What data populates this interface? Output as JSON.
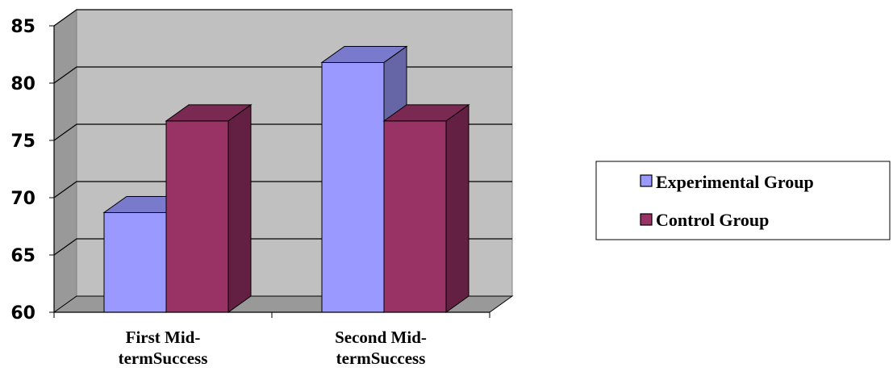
{
  "chart_data": {
    "type": "bar",
    "title": "",
    "xlabel": "",
    "ylabel": "",
    "categories": [
      "First Mid-termSuccess",
      "Second Mid-termSuccess"
    ],
    "category_lines": [
      [
        "First Mid-",
        "termSuccess"
      ],
      [
        "Second Mid-",
        "termSuccess"
      ]
    ],
    "series": [
      {
        "name": "Experimental Group",
        "values": [
          68.7,
          81.8
        ],
        "color": "#9999ff",
        "side_color": "#6666a6",
        "top_color": "#7a7acc"
      },
      {
        "name": "Control Group",
        "values": [
          76.7,
          76.7
        ],
        "color": "#993366",
        "side_color": "#632042",
        "top_color": "#7a2952"
      }
    ],
    "ylim": [
      60,
      85
    ],
    "yticks": [
      60,
      65,
      70,
      75,
      80,
      85
    ],
    "grid": true,
    "three_d": true,
    "legend_position": "right",
    "colors": {
      "wall": "#c0c0c0",
      "side_wall": "#999999",
      "floor": "#999999",
      "grid": "#000000"
    }
  }
}
